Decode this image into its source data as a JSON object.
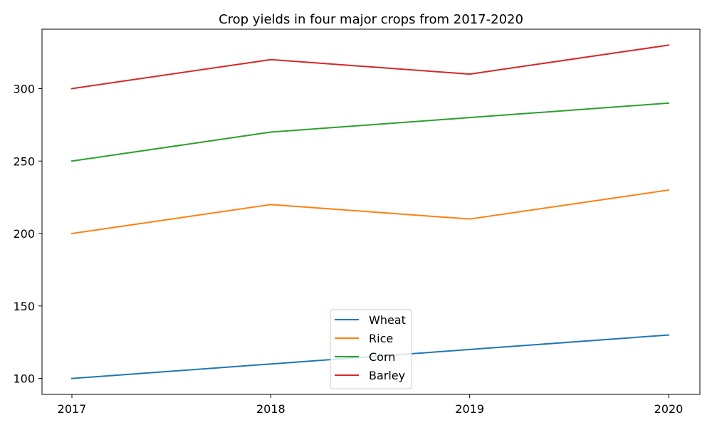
{
  "chart_data": {
    "type": "line",
    "title": "Crop yields in four major crops from 2017-2020",
    "xlabel": "",
    "ylabel": "",
    "x": [
      "2017",
      "2018",
      "2019",
      "2020"
    ],
    "yticks": [
      "100",
      "150",
      "200",
      "250",
      "300"
    ],
    "ylim": [
      89,
      341
    ],
    "grid": false,
    "legend_position": "lower center",
    "series": [
      {
        "name": "Wheat",
        "color": "#1f77b4",
        "values": [
          100,
          110,
          120,
          130
        ]
      },
      {
        "name": "Rice",
        "color": "#ff7f0e",
        "values": [
          200,
          220,
          210,
          230
        ]
      },
      {
        "name": "Corn",
        "color": "#2ca02c",
        "values": [
          250,
          270,
          280,
          290
        ]
      },
      {
        "name": "Barley",
        "color": "#d62728",
        "values": [
          300,
          320,
          310,
          330
        ]
      }
    ]
  }
}
